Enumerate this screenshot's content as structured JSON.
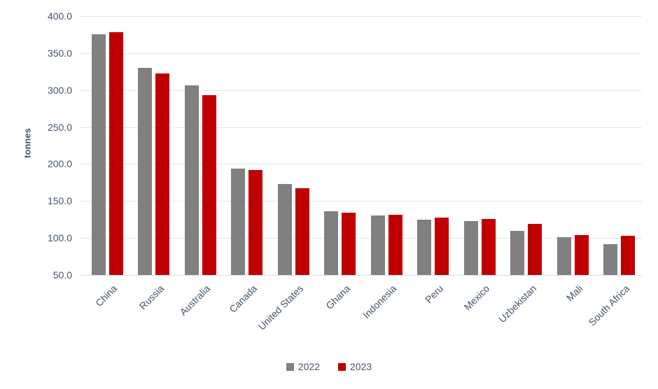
{
  "chart_data": {
    "type": "bar",
    "title": "",
    "xlabel": "",
    "ylabel": "tonnes",
    "ylim": [
      50,
      400
    ],
    "ytick_step": 50,
    "yticks": [
      "400.0",
      "350.0",
      "300.0",
      "250.0",
      "200.0",
      "150.0",
      "100.0",
      "50.0"
    ],
    "grid": true,
    "legend_position": "bottom",
    "categories": [
      "China",
      "Russia",
      "Australia",
      "Canada",
      "United States",
      "Ghana",
      "Indonesia",
      "Peru",
      "Mexico",
      "Uzbekistan",
      "Mali",
      "South Africa"
    ],
    "series": [
      {
        "name": "2022",
        "color": "#808080",
        "values": [
          375,
          330,
          306,
          194,
          173,
          136,
          130,
          125,
          123,
          110,
          101,
          92
        ]
      },
      {
        "name": "2023",
        "color": "#C00000",
        "values": [
          378,
          322,
          293,
          192,
          167,
          134,
          131,
          128,
          126,
          119,
          104,
          103
        ]
      }
    ]
  },
  "colors": {
    "axis_text": "#44546A",
    "gridline": "#E2E6EC",
    "background": "#FFFFFF",
    "series_2022": "#808080",
    "series_2023": "#C00000"
  }
}
